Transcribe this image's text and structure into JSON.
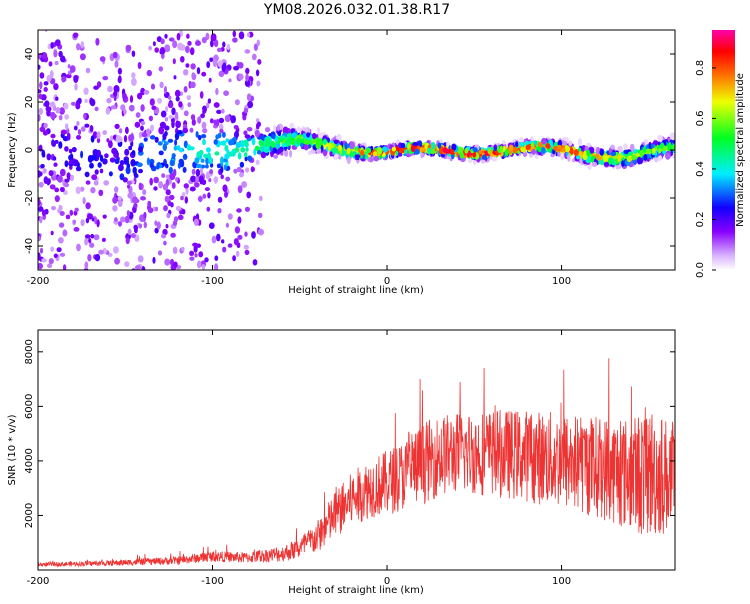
{
  "title": "YM08.2026.032.01.38.R17",
  "chart_data": [
    {
      "type": "heatmap",
      "xlabel": "Height of straight line (km)",
      "ylabel": "Frequency (Hz)",
      "xlim": [
        -200,
        165
      ],
      "ylim": [
        -50,
        50
      ],
      "xticks": [
        -200,
        -100,
        0,
        100
      ],
      "yticks": [
        -40,
        -20,
        0,
        20,
        40
      ],
      "colorbar": {
        "label": "Normalized spectral amplitude",
        "range": [
          0,
          0.95
        ],
        "ticks": [
          "0.0",
          "0.2",
          "0.4",
          "0.6",
          "0.8"
        ],
        "colormap": "rainbow (white-violet-blue-cyan-green-yellow-red-magenta)"
      },
      "description_points": [
        {
          "x": -200,
          "center_hz": 0,
          "spread_hz": 50,
          "amplitude": 0.2
        },
        {
          "x": -150,
          "center_hz": -4,
          "spread_hz": 45,
          "amplitude": 0.25
        },
        {
          "x": -120,
          "center_hz": -2,
          "spread_hz": 40,
          "amplitude": 0.35
        },
        {
          "x": -75,
          "center_hz": 2,
          "spread_hz": 10,
          "amplitude": 0.5
        },
        {
          "x": -50,
          "center_hz": 3,
          "spread_hz": 6,
          "amplitude": 0.6
        },
        {
          "x": -20,
          "center_hz": 1,
          "spread_hz": 4,
          "amplitude": 0.75
        },
        {
          "x": 0,
          "center_hz": -1,
          "spread_hz": 3,
          "amplitude": 0.9
        },
        {
          "x": 50,
          "center_hz": 0,
          "spread_hz": 3,
          "amplitude": 0.92
        },
        {
          "x": 100,
          "center_hz": 0,
          "spread_hz": 4,
          "amplitude": 0.85
        },
        {
          "x": 140,
          "center_hz": -3,
          "spread_hz": 5,
          "amplitude": 0.7
        },
        {
          "x": 165,
          "center_hz": 0,
          "spread_hz": 5,
          "amplitude": 0.6
        }
      ]
    },
    {
      "type": "line",
      "xlabel": "Height of straight line (km)",
      "ylabel": "SNR (10 * v/v)",
      "xlim": [
        -200,
        165
      ],
      "ylim": [
        0,
        8800
      ],
      "xticks": [
        -200,
        -100,
        0,
        100
      ],
      "yticks": [
        2000,
        4000,
        6000,
        8000
      ],
      "series": [
        {
          "name": "SNR",
          "color": "#ee3333",
          "x": [
            -200,
            -160,
            -120,
            -100,
            -80,
            -60,
            -50,
            -40,
            -30,
            -20,
            -10,
            0,
            10,
            20,
            30,
            40,
            60,
            80,
            100,
            120,
            140,
            150,
            165
          ],
          "y": [
            200,
            250,
            350,
            500,
            450,
            600,
            800,
            1200,
            2000,
            2600,
            3000,
            3200,
            3500,
            3900,
            4200,
            4300,
            4300,
            4200,
            4000,
            3800,
            3500,
            3600,
            3400
          ],
          "noise_amplitude": [
            80,
            100,
            150,
            200,
            200,
            300,
            400,
            600,
            900,
            1000,
            1100,
            1200,
            1300,
            1500,
            1500,
            1500,
            1600,
            1700,
            1800,
            1900,
            2100,
            2500,
            2000
          ]
        }
      ]
    }
  ]
}
